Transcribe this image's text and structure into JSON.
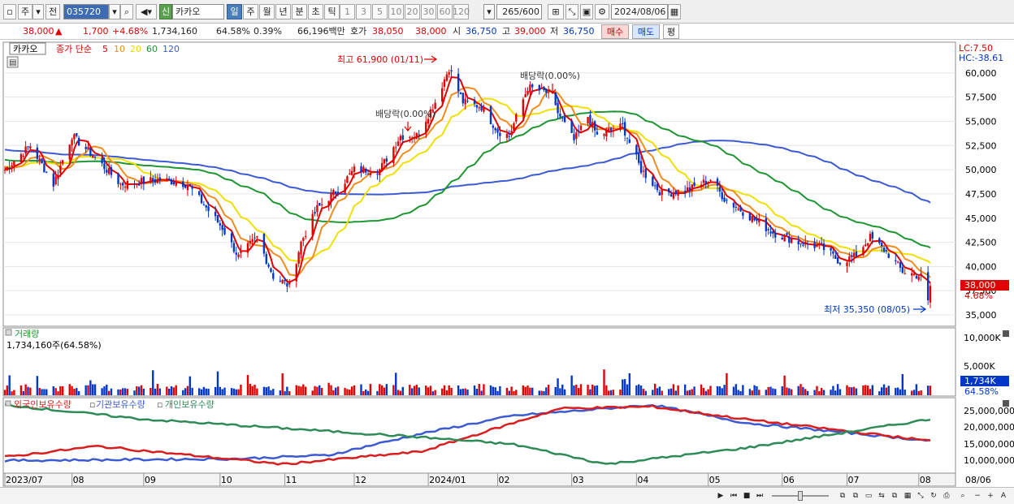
{
  "toolbar": {
    "market_type": "주",
    "prev_label": "전",
    "stock_code": "035720",
    "credit_badge": "신",
    "stock_name": "카카오",
    "period_tabs": [
      "일",
      "주",
      "월",
      "년",
      "분",
      "초",
      "틱"
    ],
    "active_period": "일",
    "interval_buttons": [
      "1",
      "3",
      "5",
      "10",
      "20",
      "30",
      "60",
      "120"
    ],
    "count": "265",
    "count_max": "/600",
    "date": "2024/08/06"
  },
  "quote": {
    "price": "38,000",
    "change": "1,700",
    "change_pct": "+4.68%",
    "volume": "1,734,160",
    "volume_ratio": "64.58%",
    "turnover_rate": "0.39%",
    "amount": "66,196백만",
    "bid_label": "호가",
    "ask_price": "38,050",
    "bid_price": "38,000",
    "open_label": "시",
    "open": "36,750",
    "high_label": "고",
    "high": "39,000",
    "low_label": "저",
    "low": "36,750",
    "buy_button": "매수",
    "sell_button": "매도",
    "eval_button": "평"
  },
  "price_panel": {
    "legend_name": "카카오",
    "legend_main": "종가 단순",
    "ma_periods": [
      "5",
      "10",
      "20",
      "60",
      "120"
    ],
    "lc_label": "LC:7.50",
    "hc_label": "HC:-38.61",
    "current_price_label": "38,000",
    "current_pct_label": "4.68%",
    "high_annotation": "최고 61,900 (01/11)",
    "low_annotation": "최저 35,350 (08/05)",
    "dividend_labels": [
      "배당락(0.00%)",
      "배당락(0.00%)"
    ]
  },
  "volume_panel": {
    "title": "거래량",
    "summary": "1,734,160주(64.58%)",
    "y_ticks": [
      "10,000K",
      "5,000K"
    ],
    "current_label": "1,734K",
    "current_pct": "64.58%"
  },
  "holdings_panel": {
    "legends": [
      "외국인보유수량",
      "기관보유수량",
      "개인보유수량"
    ],
    "y_ticks": [
      "25,000,000",
      "20,000,000",
      "15,000,000",
      "10,000,000"
    ]
  },
  "x_axis": {
    "labels": [
      "2023/07",
      "08",
      "09",
      "10",
      "11",
      "12",
      "2024/01",
      "02",
      "03",
      "04",
      "05",
      "06",
      "07",
      "08"
    ],
    "end_label": "08/06"
  },
  "colors": {
    "up": "#e00000",
    "down": "#0037c8",
    "ma5": "#e00000",
    "ma10": "#f08c1e",
    "ma20": "#f0e000",
    "ma60": "#1e9632",
    "ma120": "#3c5ad2",
    "foreign": "#3c5ad2",
    "institution": "#d81e1e",
    "individual": "#2e8b57"
  },
  "chart_data": {
    "type": "candlestick",
    "y_ticks": [
      "60,000",
      "57,500",
      "55,000",
      "52,500",
      "50,000",
      "47,500",
      "45,000",
      "42,500",
      "40,000",
      "37,500",
      "35,000"
    ],
    "ylim": [
      34000,
      63000
    ],
    "close_anchors": [
      [
        "2023/07/03",
        50000
      ],
      [
        "2023/07/14",
        52500
      ],
      [
        "2023/07/24",
        48500
      ],
      [
        "2023/08/01",
        53500
      ],
      [
        "2023/08/10",
        51500
      ],
      [
        "2023/08/22",
        48500
      ],
      [
        "2023/09/08",
        49000
      ],
      [
        "2023/09/20",
        48500
      ],
      [
        "2023/10/05",
        44000
      ],
      [
        "2023/10/12",
        41000
      ],
      [
        "2023/10/20",
        43000
      ],
      [
        "2023/10/27",
        39000
      ],
      [
        "2023/11/03",
        38000
      ],
      [
        "2023/11/08",
        42500
      ],
      [
        "2023/11/15",
        46000
      ],
      [
        "2023/11/24",
        48000
      ],
      [
        "2023/12/01",
        50000
      ],
      [
        "2023/12/12",
        50000
      ],
      [
        "2023/12/21",
        53500
      ],
      [
        "2023/12/28",
        53500
      ],
      [
        "2024/01/05",
        57000
      ],
      [
        "2024/01/11",
        60500
      ],
      [
        "2024/01/17",
        57000
      ],
      [
        "2024/01/25",
        56500
      ],
      [
        "2024/02/01",
        54000
      ],
      [
        "2024/02/06",
        53500
      ],
      [
        "2024/02/14",
        58500
      ],
      [
        "2024/02/22",
        58000
      ],
      [
        "2024/03/05",
        53000
      ],
      [
        "2024/03/11",
        55500
      ],
      [
        "2024/03/15",
        53500
      ],
      [
        "2024/03/26",
        54500
      ],
      [
        "2024/04/03",
        50000
      ],
      [
        "2024/04/12",
        47500
      ],
      [
        "2024/04/24",
        48000
      ],
      [
        "2024/05/03",
        49000
      ],
      [
        "2024/05/09",
        47000
      ],
      [
        "2024/05/21",
        45000
      ],
      [
        "2024/05/30",
        43500
      ],
      [
        "2024/06/10",
        42500
      ],
      [
        "2024/06/20",
        42000
      ],
      [
        "2024/06/28",
        40500
      ],
      [
        "2024/07/04",
        41000
      ],
      [
        "2024/07/11",
        43000
      ],
      [
        "2024/07/18",
        41500
      ],
      [
        "2024/07/25",
        39500
      ],
      [
        "2024/08/02",
        39000
      ],
      [
        "2024/08/05",
        36300
      ],
      [
        "2024/08/06",
        38000
      ]
    ],
    "holdings_approx": {
      "foreign": [
        [
          0,
          9500000
        ],
        [
          0.25,
          10000000
        ],
        [
          0.35,
          11000000
        ],
        [
          0.45,
          17000000
        ],
        [
          0.55,
          22000000
        ],
        [
          0.7,
          25000000
        ],
        [
          0.8,
          20000000
        ],
        [
          1.0,
          15000000
        ]
      ],
      "institution": [
        [
          0,
          10500000
        ],
        [
          0.1,
          13500000
        ],
        [
          0.3,
          8500000
        ],
        [
          0.45,
          12000000
        ],
        [
          0.6,
          24000000
        ],
        [
          0.7,
          24500000
        ],
        [
          0.8,
          21000000
        ],
        [
          1.0,
          15000000
        ]
      ],
      "individual": [
        [
          0,
          25000000
        ],
        [
          0.15,
          21000000
        ],
        [
          0.45,
          16000000
        ],
        [
          0.55,
          14000000
        ],
        [
          0.65,
          8500000
        ],
        [
          0.8,
          13000000
        ],
        [
          0.9,
          17000000
        ],
        [
          1.0,
          21000000
        ]
      ]
    }
  }
}
